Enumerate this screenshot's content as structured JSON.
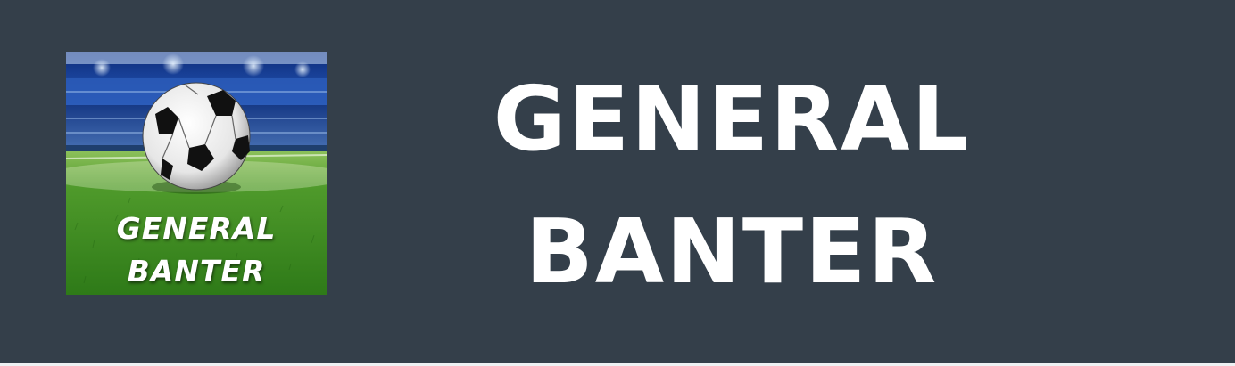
{
  "logo": {
    "line1": "GENERAL",
    "line2": "BANTER",
    "icon": "soccer-ball-stadium-logo"
  },
  "title": {
    "line1": "GENERAL",
    "line2": "BANTER"
  },
  "colors": {
    "background": "#343f4a",
    "text": "#ffffff",
    "pitch_green": "#3f8f24",
    "stadium_blue": "#1d4aa0"
  }
}
